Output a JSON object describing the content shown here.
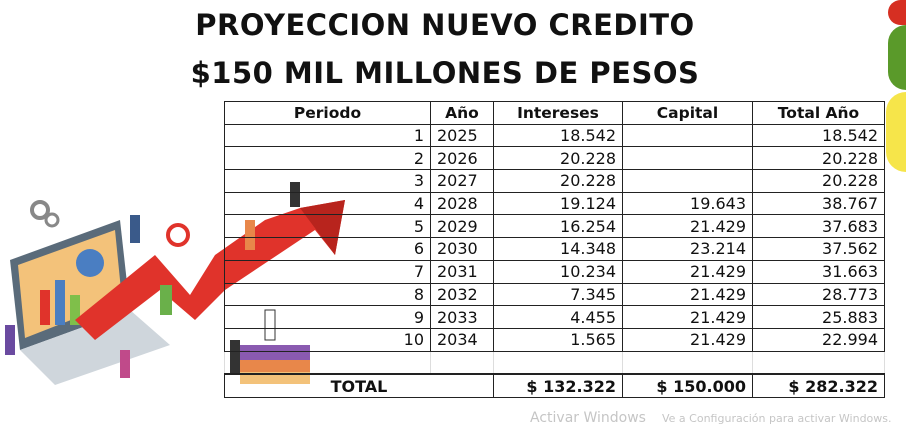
{
  "title": {
    "line1": "PROYECCION NUEVO CREDITO",
    "line2": "$150 MIL MILLONES DE PESOS"
  },
  "table": {
    "headers": [
      "Periodo",
      "Año",
      "Intereses",
      "Capital",
      "Total Año"
    ],
    "rows": [
      [
        "1",
        "2025",
        "18.542",
        "",
        "18.542"
      ],
      [
        "2",
        "2026",
        "20.228",
        "",
        "20.228"
      ],
      [
        "3",
        "2027",
        "20.228",
        "",
        "20.228"
      ],
      [
        "4",
        "2028",
        "19.124",
        "19.643",
        "38.767"
      ],
      [
        "5",
        "2029",
        "16.254",
        "21.429",
        "37.683"
      ],
      [
        "6",
        "2030",
        "14.348",
        "23.214",
        "37.562"
      ],
      [
        "7",
        "2031",
        "10.234",
        "21.429",
        "31.663"
      ],
      [
        "8",
        "2032",
        "7.345",
        "21.429",
        "28.773"
      ],
      [
        "9",
        "2033",
        "4.455",
        "21.429",
        "25.883"
      ],
      [
        "10",
        "2034",
        "1.565",
        "21.429",
        "22.994"
      ]
    ],
    "total": {
      "label": "TOTAL",
      "intereses": "$ 132.322",
      "capital": "$ 150.000",
      "total": "$ 282.322"
    }
  },
  "watermark": {
    "line1": "Activar Windows",
    "line2": "Ve a Configuración para activar Windows."
  },
  "colors": {
    "arrow": "#e0332b",
    "circle_red": "#d62f22",
    "circle_green": "#5a9a2a",
    "circle_yellow": "#f6e54a"
  }
}
